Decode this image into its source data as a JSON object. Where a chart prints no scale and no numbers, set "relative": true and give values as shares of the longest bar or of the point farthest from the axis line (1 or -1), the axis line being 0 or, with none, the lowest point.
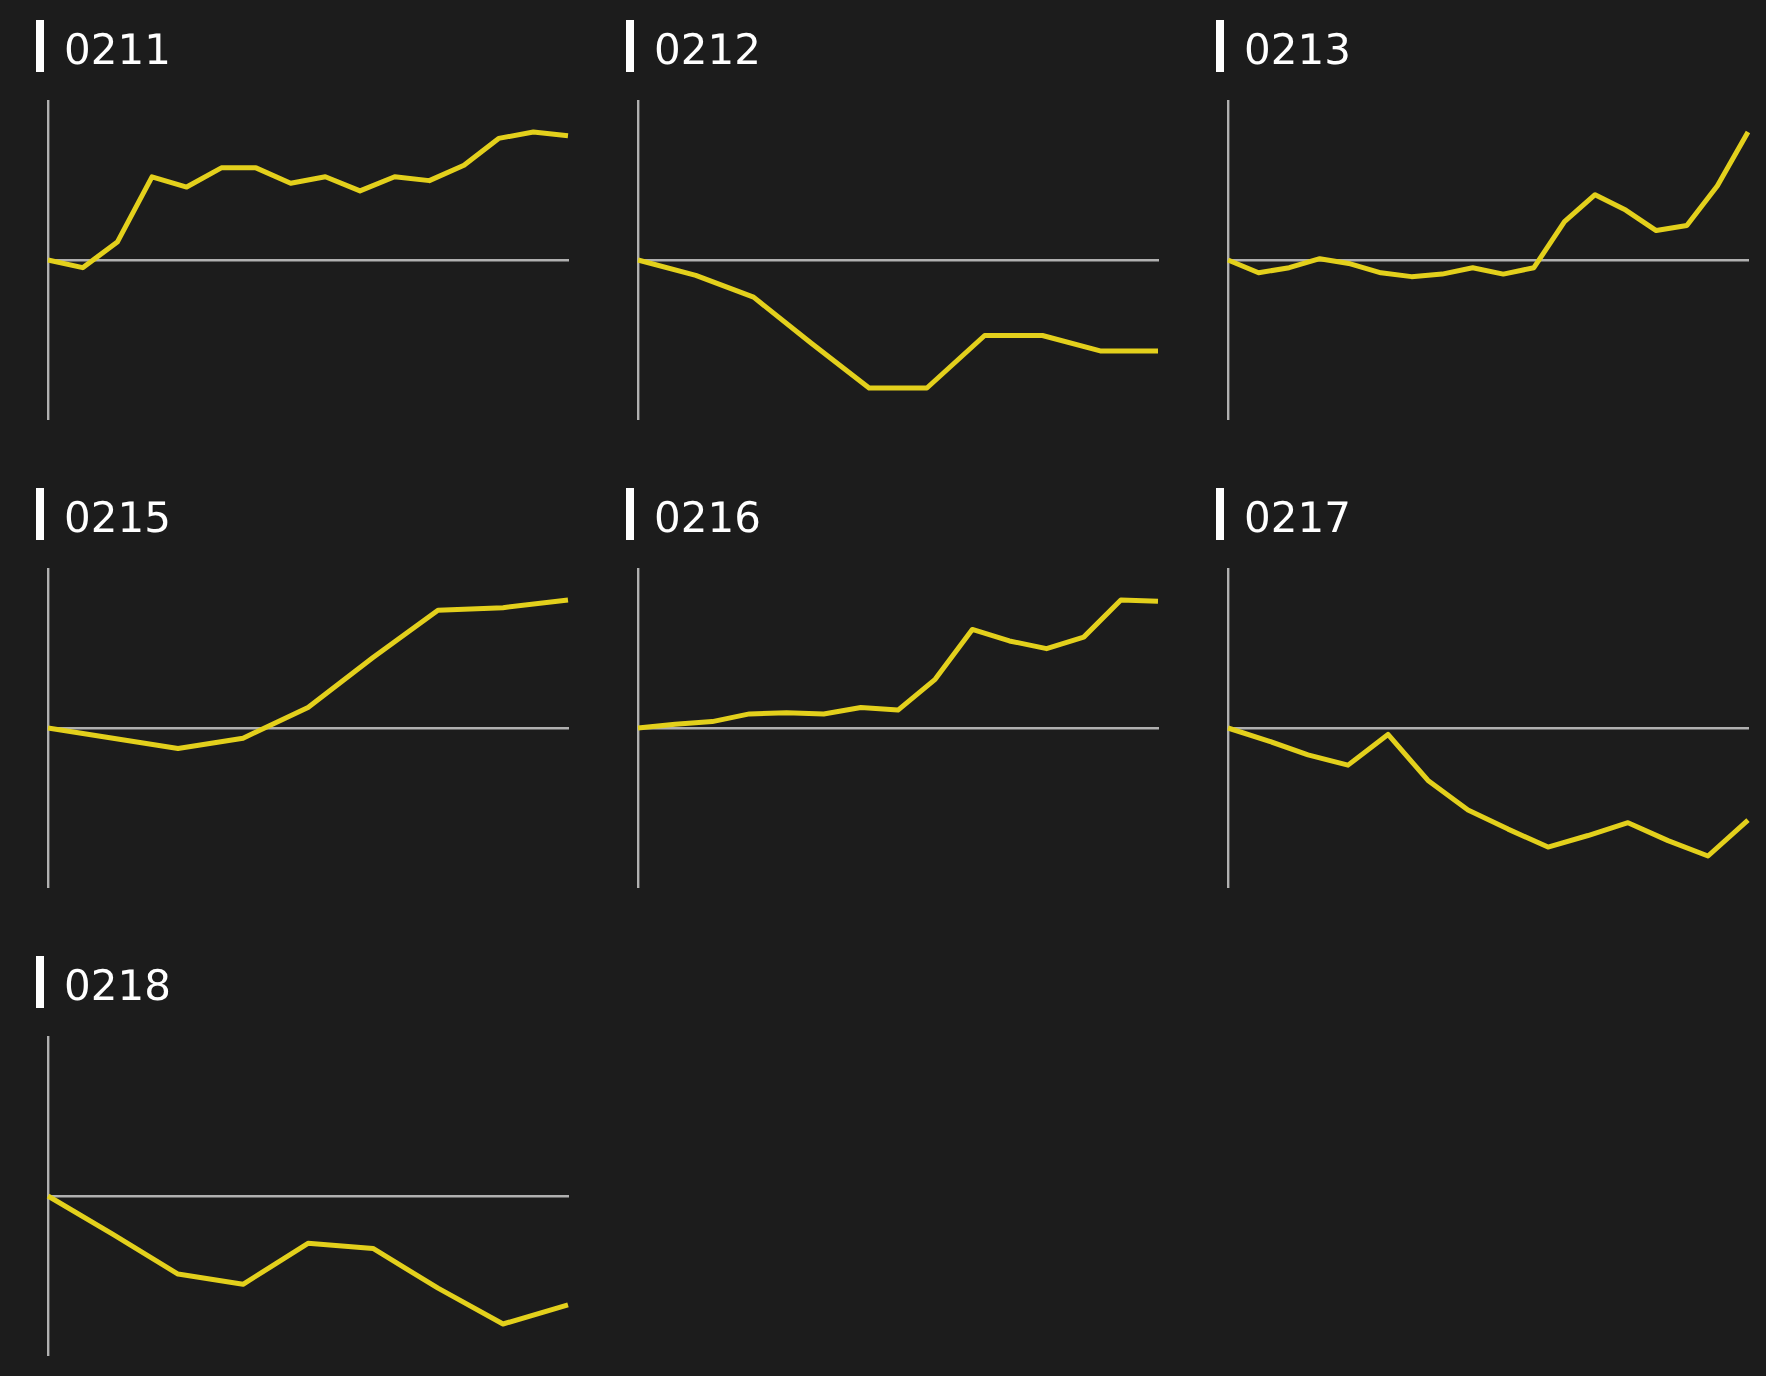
{
  "chart_data": [
    {
      "type": "line",
      "title": "0211",
      "relative": true,
      "marker": "none",
      "color": "#e3d01c",
      "categories": [
        null,
        null,
        null,
        null,
        null,
        null,
        null,
        null,
        null,
        null,
        null,
        null,
        null,
        null,
        null,
        null
      ],
      "values": [
        0,
        -0.06,
        0.14,
        0.65,
        0.57,
        0.72,
        0.72,
        0.6,
        0.65,
        0.54,
        0.65,
        0.62,
        0.74,
        0.95,
        1,
        0.97
      ]
    },
    {
      "type": "line",
      "title": "0212",
      "relative": true,
      "marker": "none",
      "color": "#e3d01c",
      "categories": [
        null,
        null,
        null,
        null,
        null,
        null,
        null,
        null,
        null,
        null
      ],
      "values": [
        0,
        -0.12,
        -0.29,
        -0.65,
        -1,
        -1,
        -0.59,
        -0.59,
        -0.71,
        -0.71
      ]
    },
    {
      "type": "line",
      "title": "0213",
      "relative": true,
      "marker": "none",
      "color": "#e3d01c",
      "categories": [
        null,
        null,
        null,
        null,
        null,
        null,
        null,
        null,
        null,
        null,
        null,
        null,
        null,
        null,
        null,
        null,
        null,
        null
      ],
      "values": [
        0,
        -0.1,
        -0.06,
        0.01,
        -0.03,
        -0.1,
        -0.13,
        -0.11,
        -0.06,
        -0.11,
        -0.06,
        0.3,
        0.51,
        0.39,
        0.23,
        0.27,
        0.58,
        1
      ]
    },
    {
      "type": "line",
      "title": "0215",
      "relative": true,
      "marker": "none",
      "color": "#e3d01c",
      "categories": [
        null,
        null,
        null,
        null,
        null,
        null,
        null,
        null,
        null
      ],
      "values": [
        0,
        -0.08,
        -0.16,
        -0.08,
        0.16,
        0.55,
        0.92,
        0.94,
        1
      ]
    },
    {
      "type": "line",
      "title": "0216",
      "relative": true,
      "marker": "none",
      "color": "#e3d01c",
      "categories": [
        null,
        null,
        null,
        null,
        null,
        null,
        null,
        null,
        null,
        null,
        null,
        null,
        null,
        null,
        null
      ],
      "values": [
        0,
        0.03,
        0.05,
        0.11,
        0.12,
        0.11,
        0.16,
        0.14,
        0.38,
        0.77,
        0.68,
        0.62,
        0.71,
        1,
        0.99
      ]
    },
    {
      "type": "line",
      "title": "0217",
      "relative": true,
      "marker": "none",
      "color": "#e3d01c",
      "categories": [
        null,
        null,
        null,
        null,
        null,
        null,
        null,
        null,
        null,
        null,
        null,
        null,
        null,
        null
      ],
      "values": [
        0,
        -0.1,
        -0.21,
        -0.29,
        -0.05,
        -0.41,
        -0.64,
        -0.79,
        -0.93,
        -0.84,
        -0.74,
        -0.88,
        -1,
        -0.72
      ]
    },
    {
      "type": "line",
      "title": "0218",
      "relative": true,
      "marker": "none",
      "color": "#e3d01c",
      "categories": [
        null,
        null,
        null,
        null,
        null,
        null,
        null,
        null,
        null
      ],
      "values": [
        0,
        -0.3,
        -0.61,
        -0.69,
        -0.37,
        -0.41,
        -0.72,
        -1,
        -0.85
      ]
    }
  ]
}
